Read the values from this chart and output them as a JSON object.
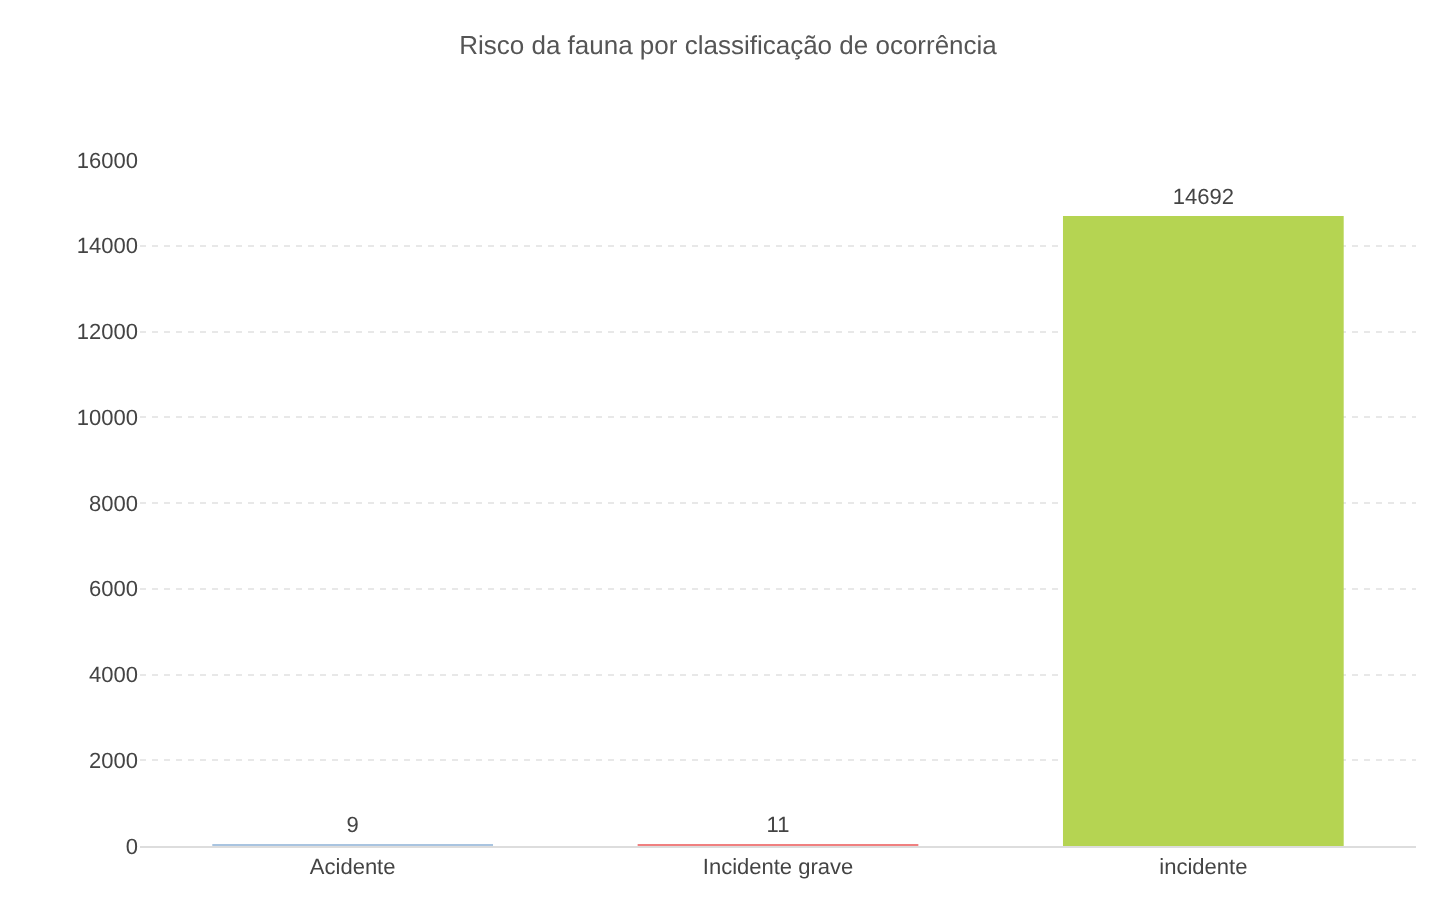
{
  "chart_data": {
    "type": "bar",
    "title": "Risco da fauna por classificação de ocorrência",
    "categories": [
      "Acidente",
      "Incidente grave",
      "incidente"
    ],
    "values": [
      9,
      11,
      14692
    ],
    "colors": [
      "#a9c4e0",
      "#f08080",
      "#b5d452"
    ],
    "ylim": [
      0,
      16000
    ],
    "yticks": [
      0,
      2000,
      4000,
      6000,
      8000,
      10000,
      12000,
      14000,
      16000
    ],
    "grid": "y",
    "data_labels": true
  }
}
